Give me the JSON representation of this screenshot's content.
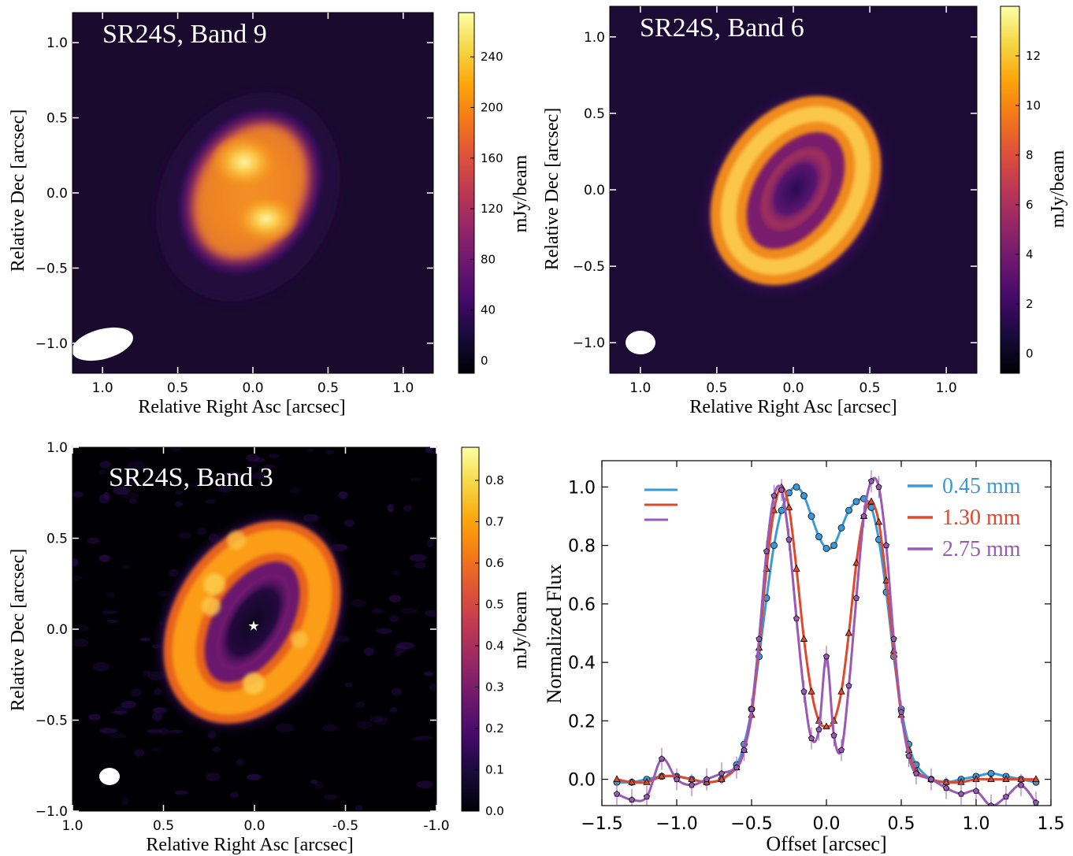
{
  "chart_data": [
    {
      "type": "heatmap",
      "panel": "top-left",
      "title": "SR24S, Band 9",
      "xlabel": "Relative Right Asc [arcsec]",
      "ylabel": "Relative Dec [arcsec]",
      "xlim": [
        1.2,
        -1.2
      ],
      "ylim": [
        -1.2,
        1.2
      ],
      "x_ticks": [
        1.0,
        0.5,
        0.0,
        -0.5,
        -1.0
      ],
      "x_tick_labels": [
        "1.0",
        "0.5",
        "0.0",
        "0.5",
        "1.0"
      ],
      "y_ticks": [
        1.0,
        0.5,
        0.0,
        -0.5,
        -1.0
      ],
      "y_tick_labels": [
        "1.0",
        "0.5",
        "0.0",
        "−0.5",
        "−1.0"
      ],
      "colorbar": {
        "label": "mJy/beam",
        "range": [
          -10,
          275
        ],
        "ticks": [
          0,
          40,
          80,
          120,
          160,
          200,
          240
        ],
        "tick_labels": [
          "0",
          "40",
          "80",
          "120",
          "160",
          "200",
          "240"
        ]
      },
      "morphology": "two bright lobes",
      "beam": {
        "ra": 1.0,
        "dec": -1.0,
        "major": 0.42,
        "minor": 0.2,
        "pa_deg": 75
      }
    },
    {
      "type": "heatmap",
      "panel": "top-right",
      "title": "SR24S, Band 6",
      "xlabel": "Relative Right Asc [arcsec]",
      "ylabel": "Relative Dec [arcsec]",
      "xlim": [
        1.2,
        -1.2
      ],
      "ylim": [
        -1.2,
        1.2
      ],
      "x_ticks": [
        1.0,
        0.5,
        0.0,
        -0.5,
        -1.0
      ],
      "x_tick_labels": [
        "1.0",
        "0.5",
        "0.0",
        "0.5",
        "1.0"
      ],
      "y_ticks": [
        1.0,
        0.5,
        0.0,
        -0.5,
        -1.0
      ],
      "y_tick_labels": [
        "1.0",
        "0.5",
        "0.0",
        "−0.5",
        "−1.0"
      ],
      "colorbar": {
        "label": "mJy/beam",
        "range": [
          -0.8,
          14
        ],
        "ticks": [
          0,
          2,
          4,
          6,
          8,
          10,
          12
        ],
        "tick_labels": [
          "0",
          "2",
          "4",
          "6",
          "8",
          "10",
          "12"
        ]
      },
      "morphology": "ring",
      "beam": {
        "ra": 1.0,
        "dec": -1.0,
        "major": 0.2,
        "minor": 0.16,
        "pa_deg": 80
      }
    },
    {
      "type": "heatmap",
      "panel": "bottom-left",
      "title": "SR24S, Band 3",
      "xlabel": "Relative Right Asc [arcsec]",
      "ylabel": "Relative Dec [arcsec]",
      "xlim": [
        1.0,
        -1.0
      ],
      "ylim": [
        -1.0,
        1.0
      ],
      "x_ticks": [
        1.0,
        0.5,
        0.0,
        -0.5,
        -1.0
      ],
      "x_tick_labels": [
        "1.0",
        "0.5",
        "0.0",
        "-0.5",
        "-1.0"
      ],
      "y_ticks": [
        1.0,
        0.5,
        0.0,
        -0.5,
        -1.0
      ],
      "y_tick_labels": [
        "1.0",
        "0.5",
        "0.0",
        "−0.5",
        "−1.0"
      ],
      "colorbar": {
        "label": "mJy/beam",
        "range": [
          0,
          0.88
        ],
        "ticks": [
          0.0,
          0.1,
          0.2,
          0.3,
          0.4,
          0.5,
          0.6,
          0.7,
          0.8
        ],
        "tick_labels": [
          "0.0",
          "0.1",
          "0.2",
          "0.3",
          "0.4",
          "0.5",
          "0.6",
          "0.7",
          "0.8"
        ]
      },
      "morphology": "ring with central star marker",
      "star": {
        "ra": 0.0,
        "dec": 0.0
      },
      "beam": {
        "ra": 0.79,
        "dec": -0.8,
        "major": 0.11,
        "minor": 0.09,
        "pa_deg": 90
      }
    },
    {
      "type": "line",
      "panel": "bottom-right",
      "xlabel": "Offset [arcsec]",
      "ylabel": "Normalized Flux",
      "xlim": [
        -1.5,
        1.5
      ],
      "ylim": [
        -0.09,
        1.09
      ],
      "x_ticks": [
        -1.5,
        -1.0,
        -0.5,
        0.0,
        0.5,
        1.0,
        1.5
      ],
      "x_tick_labels": [
        "−1.5",
        "−1.0",
        "−0.5",
        "0.0",
        "0.5",
        "1.0",
        "1.5"
      ],
      "y_ticks": [
        0.0,
        0.2,
        0.4,
        0.6,
        0.8,
        1.0
      ],
      "y_tick_labels": [
        "0.0",
        "0.2",
        "0.4",
        "0.6",
        "0.8",
        "1.0"
      ],
      "legend": "top-right",
      "series": [
        {
          "name": "0.45 mm",
          "color": "#3a9ad9",
          "marker": "circle",
          "x": [
            -1.4,
            -1.3,
            -1.2,
            -1.1,
            -1.0,
            -0.9,
            -0.8,
            -0.7,
            -0.6,
            -0.55,
            -0.5,
            -0.45,
            -0.4,
            -0.35,
            -0.3,
            -0.25,
            -0.2,
            -0.15,
            -0.1,
            -0.05,
            0.0,
            0.05,
            0.1,
            0.15,
            0.2,
            0.25,
            0.3,
            0.35,
            0.4,
            0.45,
            0.5,
            0.55,
            0.6,
            0.7,
            0.8,
            0.9,
            1.0,
            1.1,
            1.2,
            1.3,
            1.4
          ],
          "y": [
            -0.01,
            -0.01,
            0.0,
            0.01,
            0.01,
            0.0,
            -0.01,
            0.0,
            0.05,
            0.12,
            0.24,
            0.42,
            0.62,
            0.8,
            0.92,
            0.98,
            1.0,
            0.97,
            0.9,
            0.83,
            0.79,
            0.8,
            0.86,
            0.92,
            0.95,
            0.96,
            0.93,
            0.82,
            0.64,
            0.42,
            0.24,
            0.12,
            0.05,
            0.0,
            -0.01,
            0.0,
            0.01,
            0.02,
            0.01,
            0.0,
            -0.01
          ]
        },
        {
          "name": "1.30 mm",
          "color": "#e0482c",
          "marker": "triangle",
          "x": [
            -1.4,
            -1.3,
            -1.2,
            -1.1,
            -1.0,
            -0.9,
            -0.8,
            -0.7,
            -0.6,
            -0.55,
            -0.5,
            -0.45,
            -0.4,
            -0.35,
            -0.3,
            -0.25,
            -0.2,
            -0.15,
            -0.1,
            -0.05,
            0.0,
            0.05,
            0.1,
            0.15,
            0.2,
            0.25,
            0.3,
            0.35,
            0.4,
            0.45,
            0.5,
            0.55,
            0.6,
            0.7,
            0.8,
            0.9,
            1.0,
            1.1,
            1.2,
            1.3,
            1.4
          ],
          "y": [
            0.0,
            -0.01,
            -0.01,
            0.01,
            0.01,
            0.0,
            -0.01,
            0.0,
            0.04,
            0.1,
            0.22,
            0.45,
            0.72,
            0.92,
            1.0,
            0.93,
            0.72,
            0.48,
            0.3,
            0.2,
            0.18,
            0.2,
            0.3,
            0.5,
            0.74,
            0.9,
            0.95,
            0.88,
            0.68,
            0.44,
            0.22,
            0.1,
            0.03,
            0.0,
            -0.01,
            -0.01,
            0.0,
            0.0,
            0.0,
            0.0,
            0.0
          ]
        },
        {
          "name": "2.75 mm",
          "color": "#9b59b6",
          "marker": "pentagon",
          "x": [
            -1.4,
            -1.3,
            -1.2,
            -1.1,
            -1.0,
            -0.9,
            -0.8,
            -0.7,
            -0.6,
            -0.55,
            -0.5,
            -0.45,
            -0.4,
            -0.35,
            -0.3,
            -0.25,
            -0.2,
            -0.15,
            -0.1,
            -0.05,
            0.0,
            0.05,
            0.1,
            0.15,
            0.2,
            0.25,
            0.3,
            0.35,
            0.4,
            0.45,
            0.5,
            0.55,
            0.6,
            0.7,
            0.8,
            0.9,
            1.0,
            1.1,
            1.2,
            1.3,
            1.4
          ],
          "y": [
            -0.05,
            -0.07,
            -0.06,
            0.07,
            0.0,
            -0.02,
            0.0,
            0.02,
            0.04,
            0.1,
            0.24,
            0.48,
            0.78,
            0.97,
            0.99,
            0.82,
            0.55,
            0.3,
            0.14,
            0.17,
            0.42,
            0.15,
            0.1,
            0.32,
            0.62,
            0.9,
            1.02,
            1.0,
            0.8,
            0.48,
            0.23,
            0.08,
            0.02,
            0.0,
            -0.03,
            -0.05,
            -0.04,
            -0.09,
            -0.06,
            -0.02,
            -0.08
          ]
        }
      ]
    }
  ]
}
